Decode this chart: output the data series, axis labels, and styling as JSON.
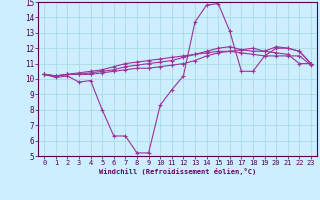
{
  "background_color": "#cceeff",
  "grid_color": "#aadddd",
  "line_color": "#993399",
  "xlim": [
    -0.5,
    23.5
  ],
  "ylim": [
    5,
    15
  ],
  "xlabel": "Windchill (Refroidissement éolien,°C)",
  "yticks": [
    5,
    6,
    7,
    8,
    9,
    10,
    11,
    12,
    13,
    14,
    15
  ],
  "xticks": [
    0,
    1,
    2,
    3,
    4,
    5,
    6,
    7,
    8,
    9,
    10,
    11,
    12,
    13,
    14,
    15,
    16,
    17,
    18,
    19,
    20,
    21,
    22,
    23
  ],
  "series": [
    {
      "x": [
        0,
        1,
        2,
        3,
        4,
        5,
        6,
        7,
        8,
        9,
        10,
        11,
        12,
        13,
        14,
        15,
        16,
        17,
        18,
        19,
        20,
        21,
        22,
        23
      ],
      "y": [
        10.3,
        10.1,
        10.2,
        9.8,
        9.9,
        8.0,
        6.3,
        6.3,
        5.2,
        5.2,
        8.3,
        9.3,
        10.2,
        13.7,
        14.8,
        14.9,
        13.1,
        10.5,
        10.5,
        11.5,
        12.0,
        12.0,
        11.8,
        11.0
      ]
    },
    {
      "x": [
        0,
        1,
        2,
        3,
        4,
        5,
        6,
        7,
        8,
        9,
        10,
        11,
        12,
        13,
        14,
        15,
        16,
        17,
        18,
        19,
        20,
        21,
        22,
        23
      ],
      "y": [
        10.3,
        10.2,
        10.3,
        10.3,
        10.3,
        10.4,
        10.5,
        10.6,
        10.7,
        10.7,
        10.8,
        10.9,
        11.0,
        11.2,
        11.5,
        11.7,
        11.8,
        11.9,
        12.0,
        11.8,
        11.7,
        11.6,
        11.0,
        11.0
      ]
    },
    {
      "x": [
        0,
        1,
        2,
        3,
        4,
        5,
        6,
        7,
        8,
        9,
        10,
        11,
        12,
        13,
        14,
        15,
        16,
        17,
        18,
        19,
        20,
        21,
        22,
        23
      ],
      "y": [
        10.3,
        10.2,
        10.3,
        10.3,
        10.4,
        10.5,
        10.6,
        10.8,
        10.9,
        11.0,
        11.1,
        11.2,
        11.4,
        11.6,
        11.8,
        12.0,
        12.1,
        11.9,
        11.8,
        11.8,
        12.1,
        12.0,
        11.8,
        11.0
      ]
    },
    {
      "x": [
        0,
        1,
        2,
        3,
        4,
        5,
        6,
        7,
        8,
        9,
        10,
        11,
        12,
        13,
        14,
        15,
        16,
        17,
        18,
        19,
        20,
        21,
        22,
        23
      ],
      "y": [
        10.3,
        10.2,
        10.3,
        10.4,
        10.5,
        10.6,
        10.8,
        11.0,
        11.1,
        11.2,
        11.3,
        11.4,
        11.5,
        11.6,
        11.7,
        11.8,
        11.8,
        11.7,
        11.6,
        11.5,
        11.5,
        11.5,
        11.5,
        10.9
      ]
    }
  ]
}
